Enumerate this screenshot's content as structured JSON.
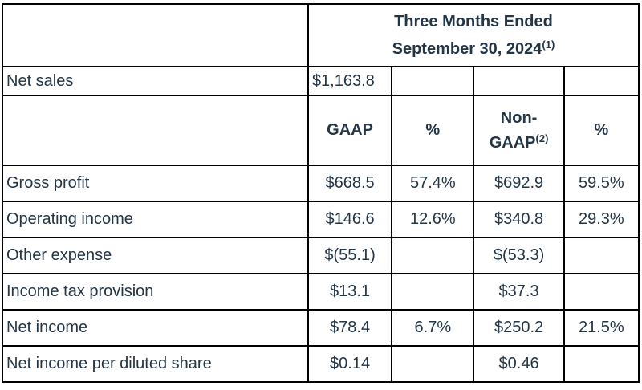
{
  "colors": {
    "text": "#243546",
    "border": "#000000",
    "background": "#ffffff"
  },
  "table": {
    "period": {
      "line1": "Three Months Ended",
      "line2": "September 30, 2024",
      "line2_sup": "(1)"
    },
    "net_sales": {
      "label": "Net sales",
      "value": "$1,163.8",
      "empty1": "",
      "empty2": "",
      "empty3": ""
    },
    "columns": {
      "gaap": {
        "label": "GAAP",
        "sup": ""
      },
      "gaap_pct": {
        "label": "%",
        "sup": ""
      },
      "non_gaap": {
        "label": "Non-GAAP",
        "sup": "(2)"
      },
      "non_gaap_pct": {
        "label": "%",
        "sup": ""
      }
    },
    "rows": [
      {
        "label": "Gross profit",
        "gaap": "$668.5",
        "gaap_pct": "57.4%",
        "non_gaap": "$692.9",
        "non_gaap_pct": "59.5%"
      },
      {
        "label": "Operating income",
        "gaap": "$146.6",
        "gaap_pct": "12.6%",
        "non_gaap": "$340.8",
        "non_gaap_pct": "29.3%"
      },
      {
        "label": "Other expense",
        "gaap": "$(55.1)",
        "gaap_pct": "",
        "non_gaap": "$(53.3)",
        "non_gaap_pct": ""
      },
      {
        "label": "Income tax provision",
        "gaap": "$13.1",
        "gaap_pct": "",
        "non_gaap": "$37.3",
        "non_gaap_pct": ""
      },
      {
        "label": "Net income",
        "gaap": "$78.4",
        "gaap_pct": "6.7%",
        "non_gaap": "$250.2",
        "non_gaap_pct": "21.5%"
      },
      {
        "label": "Net income per diluted share",
        "gaap": "$0.14",
        "gaap_pct": "",
        "non_gaap": "$0.46",
        "non_gaap_pct": ""
      }
    ]
  }
}
